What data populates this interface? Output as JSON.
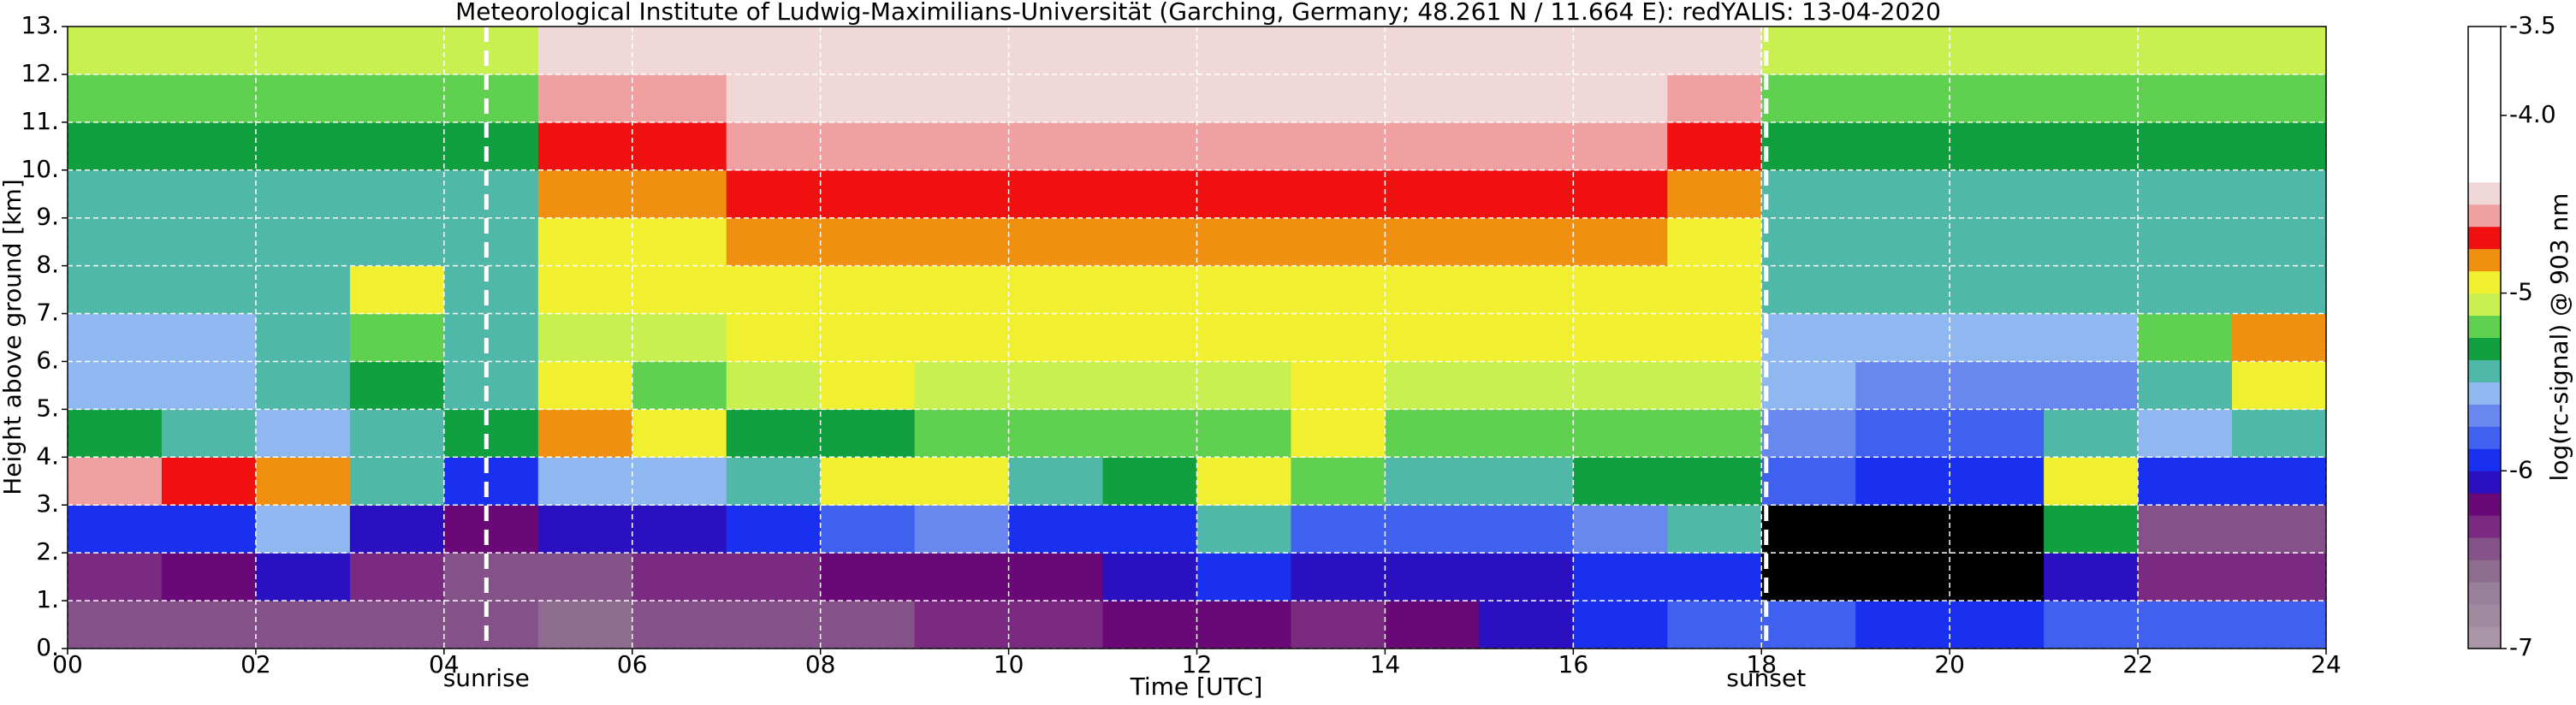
{
  "chart_data": {
    "type": "heatmap",
    "title": "Meteorological Institute of Ludwig-Maximilians-Universität (Garching, Germany; 48.261 N / 11.664 E):    redYALIS: 13-04-2020",
    "xlabel": "Time [UTC]",
    "ylabel": "Height above ground [km]",
    "colorbar_label": "log(rc-signal) @ 903 nm",
    "xlim": [
      0,
      24
    ],
    "ylim": [
      0,
      13
    ],
    "xticks": [
      {
        "value": 0,
        "label": "00"
      },
      {
        "value": 2,
        "label": "02"
      },
      {
        "value": 4,
        "label": "04"
      },
      {
        "value": 6,
        "label": "06"
      },
      {
        "value": 8,
        "label": "08"
      },
      10,
      12,
      14,
      16,
      18,
      20,
      22,
      24
    ],
    "yticks": [
      {
        "value": 0,
        "label": "0."
      },
      {
        "value": 1,
        "label": "1."
      },
      {
        "value": 2,
        "label": "2."
      },
      {
        "value": 3,
        "label": "3."
      },
      {
        "value": 4,
        "label": "4."
      },
      {
        "value": 5,
        "label": "5."
      },
      {
        "value": 6,
        "label": "6."
      },
      {
        "value": 7,
        "label": "7."
      },
      {
        "value": 8,
        "label": "8."
      },
      {
        "value": 9,
        "label": "9."
      },
      {
        "value": 10,
        "label": "10."
      },
      {
        "value": 11,
        "label": "11."
      },
      {
        "value": 12,
        "label": "12."
      },
      {
        "value": 13,
        "label": "13."
      }
    ],
    "x_edges": [
      0,
      1,
      2,
      3,
      4,
      5,
      6,
      7,
      8,
      9,
      10,
      11,
      12,
      13,
      14,
      15,
      16,
      17,
      18,
      19,
      20,
      21,
      22,
      23,
      24
    ],
    "y_edges": [
      0,
      1,
      2,
      3,
      4,
      5,
      6,
      7,
      8,
      9,
      10,
      11,
      12,
      13
    ],
    "z": [
      [
        -6.5,
        -6.5,
        -6.4,
        -6.5,
        -6.5,
        -6.6,
        -6.5,
        -6.5,
        -6.4,
        -6.3,
        -6.3,
        -6.2,
        -6.2,
        -6.3,
        -6.2,
        -6.1,
        -5.9,
        -5.8,
        -5.8,
        -5.9,
        -5.9,
        -5.8,
        -5.8,
        -5.8
      ],
      [
        -6.3,
        -6.2,
        -6.1,
        -6.3,
        -6.4,
        -6.4,
        -6.3,
        -6.3,
        -6.2,
        -6.2,
        -6.2,
        -6.1,
        -6.0,
        -6.1,
        -6.1,
        -6.1,
        -6.0,
        -6.0,
        null,
        null,
        null,
        -6.1,
        -6.3,
        -6.3
      ],
      [
        -6.0,
        -5.9,
        -5.6,
        -6.1,
        -6.2,
        -6.1,
        -6.1,
        -6.0,
        -5.8,
        -5.7,
        -5.9,
        -5.9,
        -5.4,
        -5.8,
        -5.8,
        -5.8,
        -5.7,
        -5.4,
        null,
        null,
        null,
        -5.3,
        -6.5,
        -6.5
      ],
      [
        -4.6,
        -4.7,
        -4.8,
        -5.4,
        -5.9,
        -5.6,
        -5.6,
        -5.5,
        -4.9,
        -5.0,
        -5.4,
        -5.3,
        -4.9,
        -5.2,
        -5.4,
        -5.4,
        -5.3,
        -5.3,
        -5.8,
        -6.0,
        -5.9,
        -5.0,
        -5.9,
        -6.0
      ],
      [
        -5.3,
        -5.5,
        -5.6,
        -5.5,
        -5.3,
        -4.8,
        -4.9,
        -5.3,
        -5.3,
        -5.2,
        -5.2,
        -5.2,
        -5.2,
        -5.0,
        -5.2,
        -5.2,
        -5.2,
        -5.2,
        -5.7,
        -5.8,
        -5.8,
        -5.4,
        -5.6,
        -5.5
      ],
      [
        -5.6,
        -5.6,
        -5.4,
        -5.3,
        -5.5,
        -5.0,
        -5.2,
        -5.1,
        -5.0,
        -5.1,
        -5.1,
        -5.1,
        -5.1,
        -5.0,
        -5.1,
        -5.1,
        -5.1,
        -5.1,
        -5.6,
        -5.7,
        -5.7,
        -5.7,
        -5.5,
        -5.0
      ],
      [
        -5.6,
        -5.6,
        -5.4,
        -5.2,
        -5.5,
        -5.1,
        -5.1,
        -5.0,
        -5.0,
        -5.0,
        -5.0,
        -5.0,
        -5.0,
        -5.0,
        -5.0,
        -5.0,
        -5.0,
        -5.0,
        -5.6,
        -5.6,
        -5.6,
        -5.6,
        -5.2,
        -4.8
      ],
      [
        -5.5,
        -5.5,
        -5.5,
        -4.9,
        -5.5,
        -5.0,
        -5.0,
        -4.9,
        -4.9,
        -4.9,
        -4.9,
        -4.9,
        -4.9,
        -4.9,
        -4.9,
        -4.9,
        -4.9,
        -4.9,
        -5.5,
        -5.5,
        -5.5,
        -5.5,
        -5.5,
        -5.5
      ],
      [
        -5.5,
        -5.5,
        -5.5,
        -5.4,
        -5.5,
        -4.9,
        -4.9,
        -4.8,
        -4.8,
        -4.8,
        -4.8,
        -4.8,
        -4.8,
        -4.8,
        -4.8,
        -4.8,
        -4.8,
        -4.9,
        -5.5,
        -5.5,
        -5.5,
        -5.5,
        -5.5,
        -5.5
      ],
      [
        -5.4,
        -5.4,
        -5.4,
        -5.4,
        -5.4,
        -4.8,
        -4.8,
        -4.7,
        -4.7,
        -4.7,
        -4.7,
        -4.7,
        -4.7,
        -4.7,
        -4.7,
        -4.7,
        -4.7,
        -4.8,
        -5.4,
        -5.4,
        -5.4,
        -5.4,
        -5.4,
        -5.4
      ],
      [
        -5.3,
        -5.3,
        -5.3,
        -5.3,
        -5.3,
        -4.7,
        -4.7,
        -4.6,
        -4.6,
        -4.6,
        -4.6,
        -4.6,
        -4.6,
        -4.6,
        -4.6,
        -4.6,
        -4.6,
        -4.7,
        -5.3,
        -5.3,
        -5.3,
        -5.3,
        -5.3,
        -5.3
      ],
      [
        -5.2,
        -5.2,
        -5.2,
        -5.2,
        -5.2,
        -4.6,
        -4.6,
        -4.5,
        -4.5,
        -4.5,
        -4.5,
        -4.5,
        -4.5,
        -4.5,
        -4.5,
        -4.5,
        -4.5,
        -4.6,
        -5.2,
        -5.2,
        -5.2,
        -5.2,
        -5.2,
        -5.2
      ],
      [
        -5.1,
        -5.1,
        -5.1,
        -5.1,
        -5.1,
        -4.5,
        -4.5,
        -4.4,
        -4.4,
        -4.4,
        -4.4,
        -4.4,
        -4.4,
        -4.4,
        -4.4,
        -4.4,
        -4.4,
        -4.5,
        -5.1,
        -5.1,
        -5.1,
        -5.1,
        -5.1,
        -5.1
      ]
    ],
    "clim": [
      -7,
      -3.5
    ],
    "cticks": [
      -7,
      -6,
      -5,
      {
        "value": -4,
        "label": "-4.0"
      },
      -3.5
    ],
    "colormap": [
      "#a896a8",
      "#a08aa0",
      "#98809a",
      "#8e6c90",
      "#845288",
      "#7a2a80",
      "#6a0878",
      "#2a10c0",
      "#1a30f0",
      "#4060f0",
      "#6888f0",
      "#90b8f0",
      "#50b8a8",
      "#10a040",
      "#60d050",
      "#c8f050",
      "#f0f030",
      "#f09010",
      "#f01010",
      "#f0a0a0",
      "#f0d8d8",
      "#ffffff",
      "#ffffff",
      "#ffffff",
      "#ffffff",
      "#ffffff",
      "#ffffff",
      "#ffffff"
    ],
    "nodata_color": "#000000",
    "grid": true,
    "annotations": [
      {
        "text": "sunrise",
        "x": 4.45
      },
      {
        "text": "sunset",
        "x": 18.05
      }
    ]
  }
}
